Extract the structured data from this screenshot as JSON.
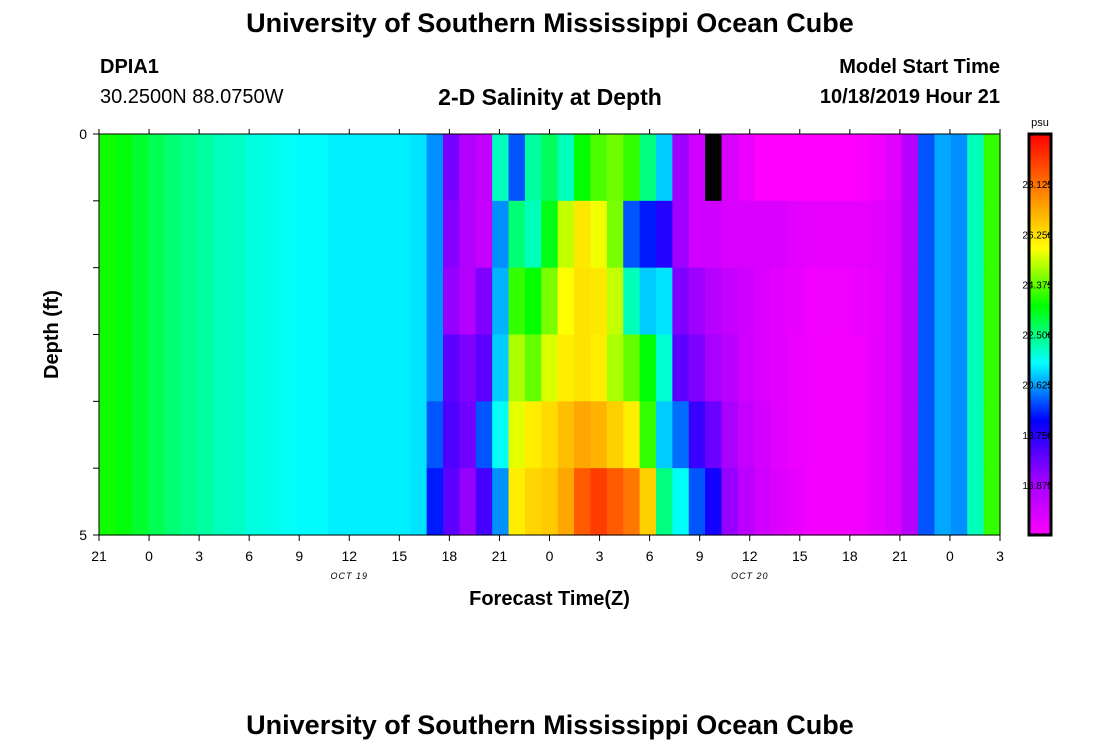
{
  "page": {
    "title_top": "University of Southern Mississippi Ocean Cube",
    "title_bottom": "University of Southern Mississippi Ocean Cube",
    "station_id": "DPIA1",
    "station_coords": "30.2500N 88.0750W",
    "chart_title": "2-D Salinity at Depth",
    "model_start_label": "Model Start Time",
    "model_start_value": "10/18/2019 Hour 21"
  },
  "chart_data": {
    "type": "heatmap",
    "title": "2-D Salinity at Depth",
    "xlabel": "Forecast Time(Z)",
    "ylabel": "Depth (ft)",
    "x_tick_labels": [
      "21",
      "0",
      "3",
      "6",
      "9",
      "12",
      "15",
      "18",
      "21",
      "0",
      "3",
      "6",
      "9",
      "12",
      "15",
      "18",
      "21",
      "0",
      "3"
    ],
    "x_date_labels": [
      {
        "label": "OCT 19",
        "after_tick": 5
      },
      {
        "label": "OCT 20",
        "after_tick": 13
      }
    ],
    "y_labels": [
      {
        "value": 0,
        "label": "0"
      },
      {
        "value": 5,
        "label": "5"
      }
    ],
    "ylim": [
      0,
      5
    ],
    "x_hours_total": 54,
    "time_step_hours": 1,
    "depth_levels": 5,
    "colorbar": {
      "unit": "psu",
      "vmin": 15.0,
      "vmax": 30.0,
      "tick_values": [
        16.875,
        18.75,
        20.625,
        22.5,
        24.375,
        26.25,
        28.125
      ],
      "tick_labels": [
        "16.875",
        "18.750",
        "20.625",
        "22.500",
        "24.375",
        "26.250",
        "28.125"
      ],
      "colors": [
        "#ff00ff",
        "#9900ff",
        "#0000ff",
        "#00ffff",
        "#00ff00",
        "#ffff00",
        "#ff8000",
        "#ff0000"
      ]
    },
    "missing_values": [
      {
        "hour": 37,
        "depth_index": 0
      }
    ],
    "salinity": [
      [
        23.7,
        23.5,
        23.2,
        22.9,
        22.6,
        22.4,
        22.2,
        22.0,
        21.9,
        21.7,
        21.6,
        21.5,
        21.4,
        21.4,
        21.3,
        21.3,
        21.3,
        21.3,
        21.3,
        21.2,
        20.5,
        17.6,
        16.6,
        16.3,
        22.0,
        20.0,
        22.2,
        22.8,
        22.0,
        23.6,
        24.2,
        24.5,
        24.0,
        22.5,
        21.0,
        17.0,
        16.0,
        15.8,
        15.8,
        15.4,
        15.0,
        15.0,
        15.0,
        15.0,
        15.0,
        15.0,
        15.1,
        15.3,
        15.6,
        16.5,
        20.0,
        20.7,
        20.5,
        22.0,
        24.0
      ],
      [
        23.7,
        23.5,
        23.2,
        22.9,
        22.6,
        22.4,
        22.2,
        22.0,
        21.9,
        21.7,
        21.6,
        21.5,
        21.4,
        21.4,
        21.3,
        21.3,
        21.3,
        21.3,
        21.3,
        21.2,
        20.5,
        17.4,
        16.6,
        16.2,
        20.5,
        22.6,
        22.0,
        23.4,
        25.2,
        26.1,
        25.6,
        24.6,
        20.0,
        19.5,
        18.8,
        17.0,
        16.0,
        16.0,
        15.8,
        15.8,
        15.8,
        15.8,
        15.6,
        15.5,
        15.5,
        15.5,
        15.5,
        15.6,
        15.8,
        16.5,
        20.0,
        20.7,
        20.5,
        22.0,
        24.0
      ],
      [
        23.7,
        23.5,
        23.2,
        22.9,
        22.6,
        22.4,
        22.2,
        22.0,
        21.9,
        21.7,
        21.6,
        21.5,
        21.4,
        21.4,
        21.3,
        21.3,
        21.3,
        21.3,
        21.3,
        21.2,
        20.5,
        17.2,
        16.6,
        17.5,
        20.8,
        24.0,
        23.6,
        24.6,
        25.7,
        26.2,
        26.1,
        25.2,
        22.0,
        21.0,
        21.2,
        17.5,
        17.0,
        16.5,
        16.2,
        16.0,
        15.8,
        15.6,
        15.5,
        15.3,
        15.3,
        15.3,
        15.4,
        15.5,
        15.8,
        16.5,
        20.0,
        20.7,
        20.5,
        22.0,
        24.0
      ],
      [
        23.7,
        23.5,
        23.2,
        22.9,
        22.6,
        22.4,
        22.2,
        22.0,
        21.9,
        21.7,
        21.6,
        21.5,
        21.4,
        21.4,
        21.3,
        21.3,
        21.3,
        21.3,
        21.3,
        21.2,
        20.5,
        18.0,
        17.5,
        18.0,
        21.0,
        25.0,
        24.4,
        25.4,
        26.0,
        26.2,
        26.0,
        25.0,
        24.4,
        23.5,
        21.8,
        18.0,
        17.5,
        16.8,
        16.4,
        16.0,
        15.8,
        15.6,
        15.4,
        15.3,
        15.2,
        15.2,
        15.3,
        15.5,
        15.8,
        16.5,
        20.0,
        20.7,
        20.5,
        22.0,
        24.0
      ],
      [
        23.7,
        23.5,
        23.2,
        22.9,
        22.6,
        22.4,
        22.2,
        22.0,
        21.9,
        21.7,
        21.6,
        21.5,
        21.4,
        21.4,
        21.3,
        21.3,
        21.3,
        21.3,
        21.3,
        21.2,
        20.0,
        18.2,
        17.7,
        20.0,
        21.5,
        25.5,
        26.0,
        26.3,
        26.8,
        27.2,
        27.0,
        26.5,
        26.0,
        24.0,
        21.0,
        20.2,
        18.5,
        17.8,
        16.8,
        16.2,
        15.9,
        15.6,
        15.4,
        15.3,
        15.2,
        15.2,
        15.3,
        15.5,
        15.8,
        16.5,
        20.0,
        20.7,
        20.5,
        22.0,
        24.0
      ],
      [
        23.7,
        23.5,
        23.2,
        22.9,
        22.6,
        22.4,
        22.2,
        22.0,
        21.9,
        21.7,
        21.6,
        21.5,
        21.4,
        21.4,
        21.3,
        21.3,
        21.3,
        21.3,
        21.3,
        21.2,
        19.5,
        18.0,
        17.2,
        18.3,
        20.5,
        26.0,
        26.4,
        26.6,
        27.2,
        28.5,
        29.0,
        28.5,
        28.0,
        26.5,
        22.5,
        21.5,
        20.0,
        19.0,
        17.2,
        16.4,
        16.0,
        15.7,
        15.5,
        15.3,
        15.2,
        15.2,
        15.3,
        15.5,
        15.8,
        16.5,
        20.0,
        20.7,
        20.5,
        22.0,
        24.0
      ]
    ]
  }
}
